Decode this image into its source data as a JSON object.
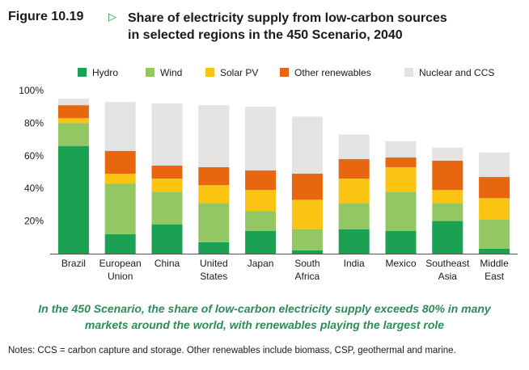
{
  "figure": {
    "label": "Figure 10.19",
    "arrow_icon": "triangle-right-outline",
    "title_line1": "Share of electricity supply from low-carbon sources",
    "title_line2": "in selected regions in the 450 Scenario, 2040"
  },
  "caption": {
    "line1": "In the 450 Scenario, the share of low-carbon electricity supply exceeds 80% in many",
    "line2": "markets around the world, with renewables playing the largest role"
  },
  "notes": "Notes: CCS = carbon capture and storage. Other renewables include biomass, CSP, geothermal and marine.",
  "chart_data": {
    "type": "bar",
    "stacked": true,
    "categories": [
      [
        "Brazil"
      ],
      [
        "European",
        "Union"
      ],
      [
        "China"
      ],
      [
        "United",
        "States"
      ],
      [
        "Japan"
      ],
      [
        "South",
        "Africa"
      ],
      [
        "India"
      ],
      [
        "Mexico"
      ],
      [
        "Southeast",
        "Asia"
      ],
      [
        "Middle",
        "East"
      ]
    ],
    "series": [
      {
        "name": "Hydro",
        "color": "#1aa152",
        "values": [
          66,
          12,
          18,
          7,
          14,
          2,
          15,
          14,
          20,
          3
        ]
      },
      {
        "name": "Wind",
        "color": "#93c764",
        "values": [
          14,
          31,
          20,
          24,
          12,
          13,
          16,
          24,
          11,
          18
        ]
      },
      {
        "name": "Solar PV",
        "color": "#fbc312",
        "values": [
          3,
          6,
          8,
          11,
          13,
          18,
          15,
          15,
          8,
          13
        ]
      },
      {
        "name": "Other renewables",
        "color": "#e8660d",
        "values": [
          8,
          14,
          8,
          11,
          12,
          16,
          12,
          6,
          18,
          13
        ]
      },
      {
        "name": "Nuclear and CCS",
        "color": "#e3e3e3",
        "values": [
          4,
          30,
          38,
          38,
          39,
          35,
          15,
          10,
          8,
          15
        ]
      }
    ],
    "ylim": [
      0,
      100
    ],
    "yticks": [
      "20%",
      "40%",
      "60%",
      "80%",
      "100%"
    ],
    "ytick_values": [
      20,
      40,
      60,
      80,
      100
    ],
    "grid": false,
    "legend_position": "top"
  }
}
